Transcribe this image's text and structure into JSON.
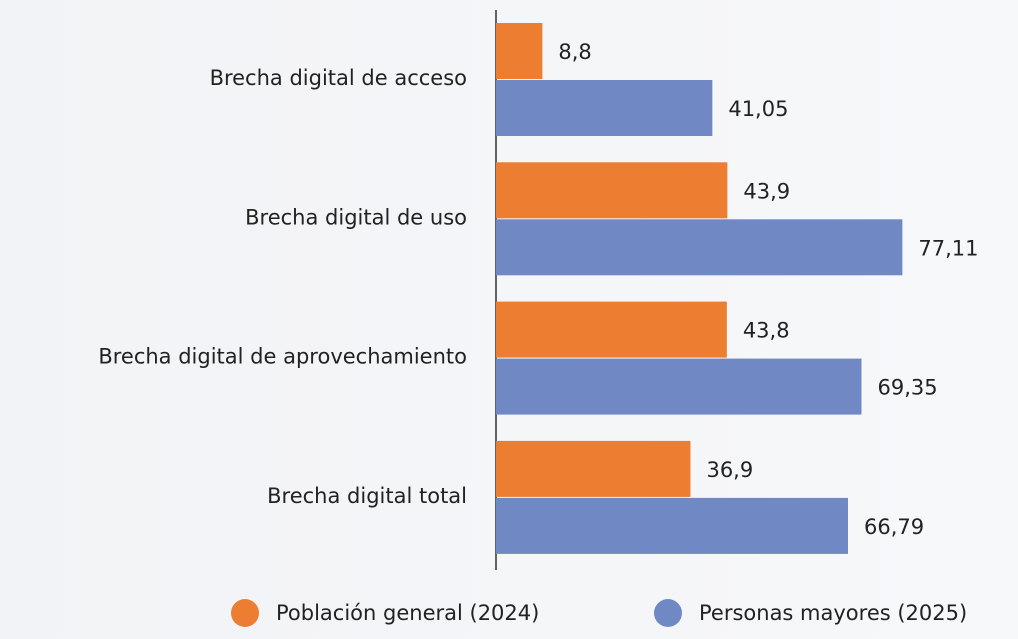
{
  "chart_data": {
    "type": "hbar",
    "categories": [
      "Brecha digital de acceso",
      "Brecha digital de uso",
      "Brecha digital de aprovechamiento",
      "Brecha digital total"
    ],
    "series": [
      {
        "name": "Población general (2024)",
        "color": "#ed7d31",
        "values": [
          8.8,
          43.9,
          43.8,
          36.9
        ],
        "value_labels": [
          "8,8",
          "43,9",
          "43,8",
          "36,9"
        ]
      },
      {
        "name": "Personas mayores (2025)",
        "color": "#7088c4",
        "values": [
          41.05,
          77.11,
          69.35,
          66.79
        ],
        "value_labels": [
          "41,05",
          "77,11",
          "69,35",
          "66,79"
        ]
      }
    ],
    "legend": "bottom"
  }
}
